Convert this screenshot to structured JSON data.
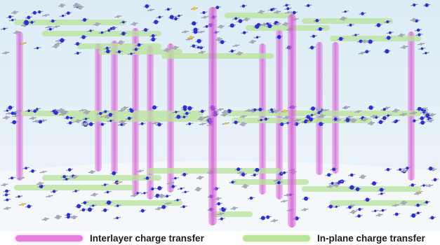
{
  "legend": {
    "interlayer": {
      "label": "Interlayer charge transfer",
      "color": "#e680e0"
    },
    "inplane": {
      "label": "In-plane charge transfer",
      "color": "#b8e39a"
    }
  },
  "scene": {
    "background_top": "#dcecf5",
    "background_bottom": "#f3f7fa",
    "atom_colors": {
      "nitrogen": "#2c2fd6",
      "carbon": "#a9a9b4",
      "metal": "#f2c230"
    },
    "layer_count": 3
  }
}
